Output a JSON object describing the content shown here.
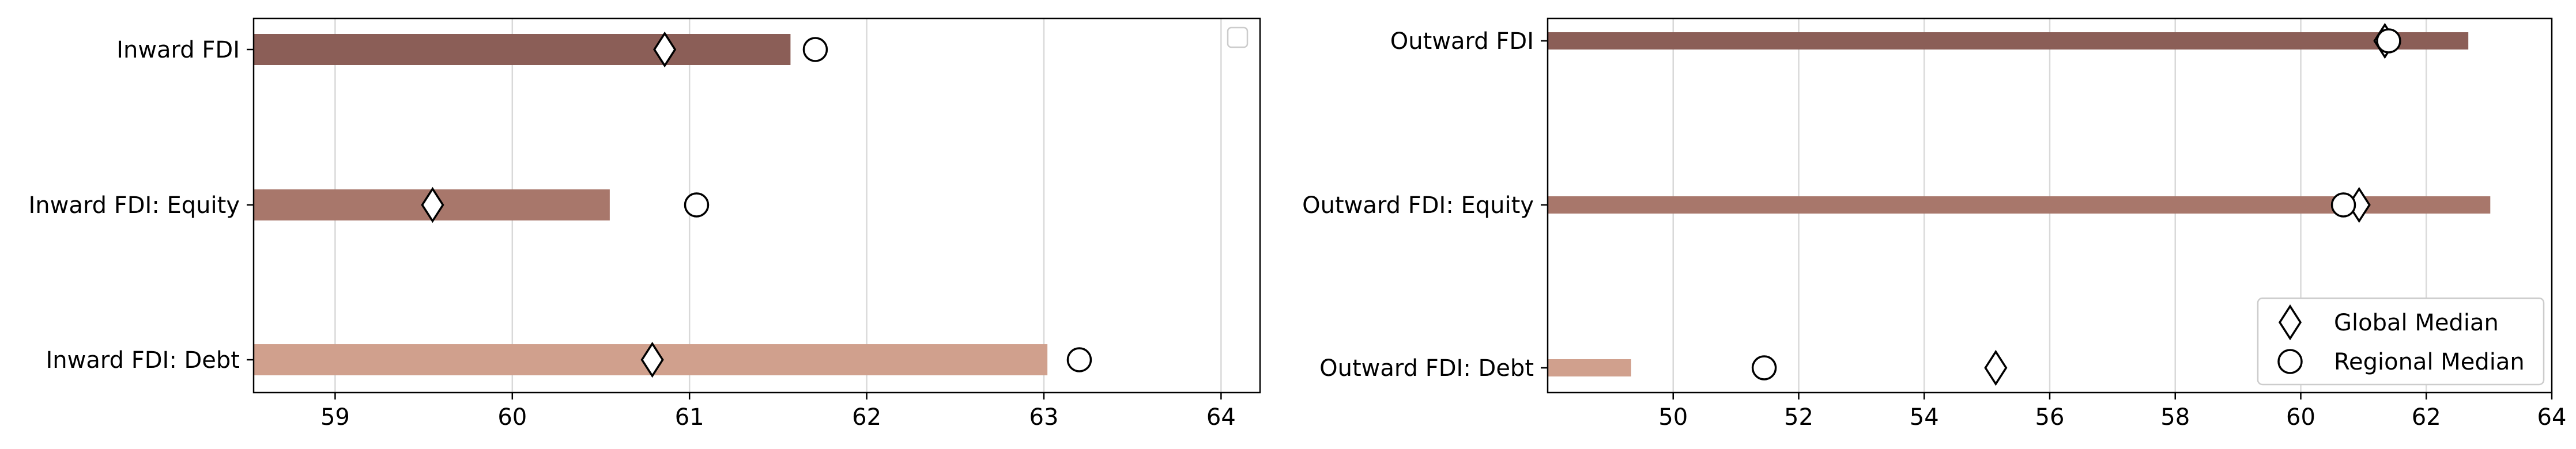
{
  "chart_data": [
    {
      "type": "bar",
      "orientation": "horizontal",
      "title": "",
      "xlabel": "",
      "ylabel": "",
      "categories": [
        "Inward FDI",
        "Inward FDI: Equity",
        "Inward FDI: Debt"
      ],
      "values": [
        61.57,
        60.55,
        63.02
      ],
      "bar_colors": [
        "#8b5e57",
        "#a8776b",
        "#d0a08d"
      ],
      "global_median": [
        60.86,
        59.55,
        60.79
      ],
      "regional_median": [
        61.71,
        61.04,
        63.2
      ],
      "xlim": [
        58.54,
        64.22
      ],
      "xticks": [
        59,
        60,
        61,
        62,
        63,
        64
      ],
      "xtick_labels": [
        "59",
        "60",
        "61",
        "62",
        "63",
        "64"
      ],
      "grid": "vertical",
      "legend": {
        "placement": "top-right",
        "entries": []
      }
    },
    {
      "type": "bar",
      "orientation": "horizontal",
      "title": "",
      "xlabel": "",
      "ylabel": "",
      "categories": [
        "Outward FDI",
        "Outward FDI: Equity",
        "Outward FDI: Debt"
      ],
      "values": [
        62.67,
        63.02,
        49.33
      ],
      "bar_colors": [
        "#8b5e57",
        "#a8776b",
        "#d0a08d"
      ],
      "global_median": [
        61.34,
        60.93,
        55.14
      ],
      "regional_median": [
        61.4,
        60.68,
        51.45
      ],
      "xlim": [
        48.0,
        64.0
      ],
      "xticks": [
        50,
        52,
        54,
        56,
        58,
        60,
        62,
        64
      ],
      "xtick_labels": [
        "50",
        "52",
        "54",
        "56",
        "58",
        "60",
        "62",
        "64"
      ],
      "grid": "vertical",
      "legend": {
        "placement": "bottom-right",
        "entries": [
          {
            "label": "Global Median",
            "marker": "diamond"
          },
          {
            "label": "Regional Median",
            "marker": "circle"
          }
        ]
      }
    }
  ],
  "colors": {
    "axis": "#000000",
    "grid": "#d9d9d9",
    "marker_edge": "#000000",
    "marker_face": "#ffffff"
  }
}
